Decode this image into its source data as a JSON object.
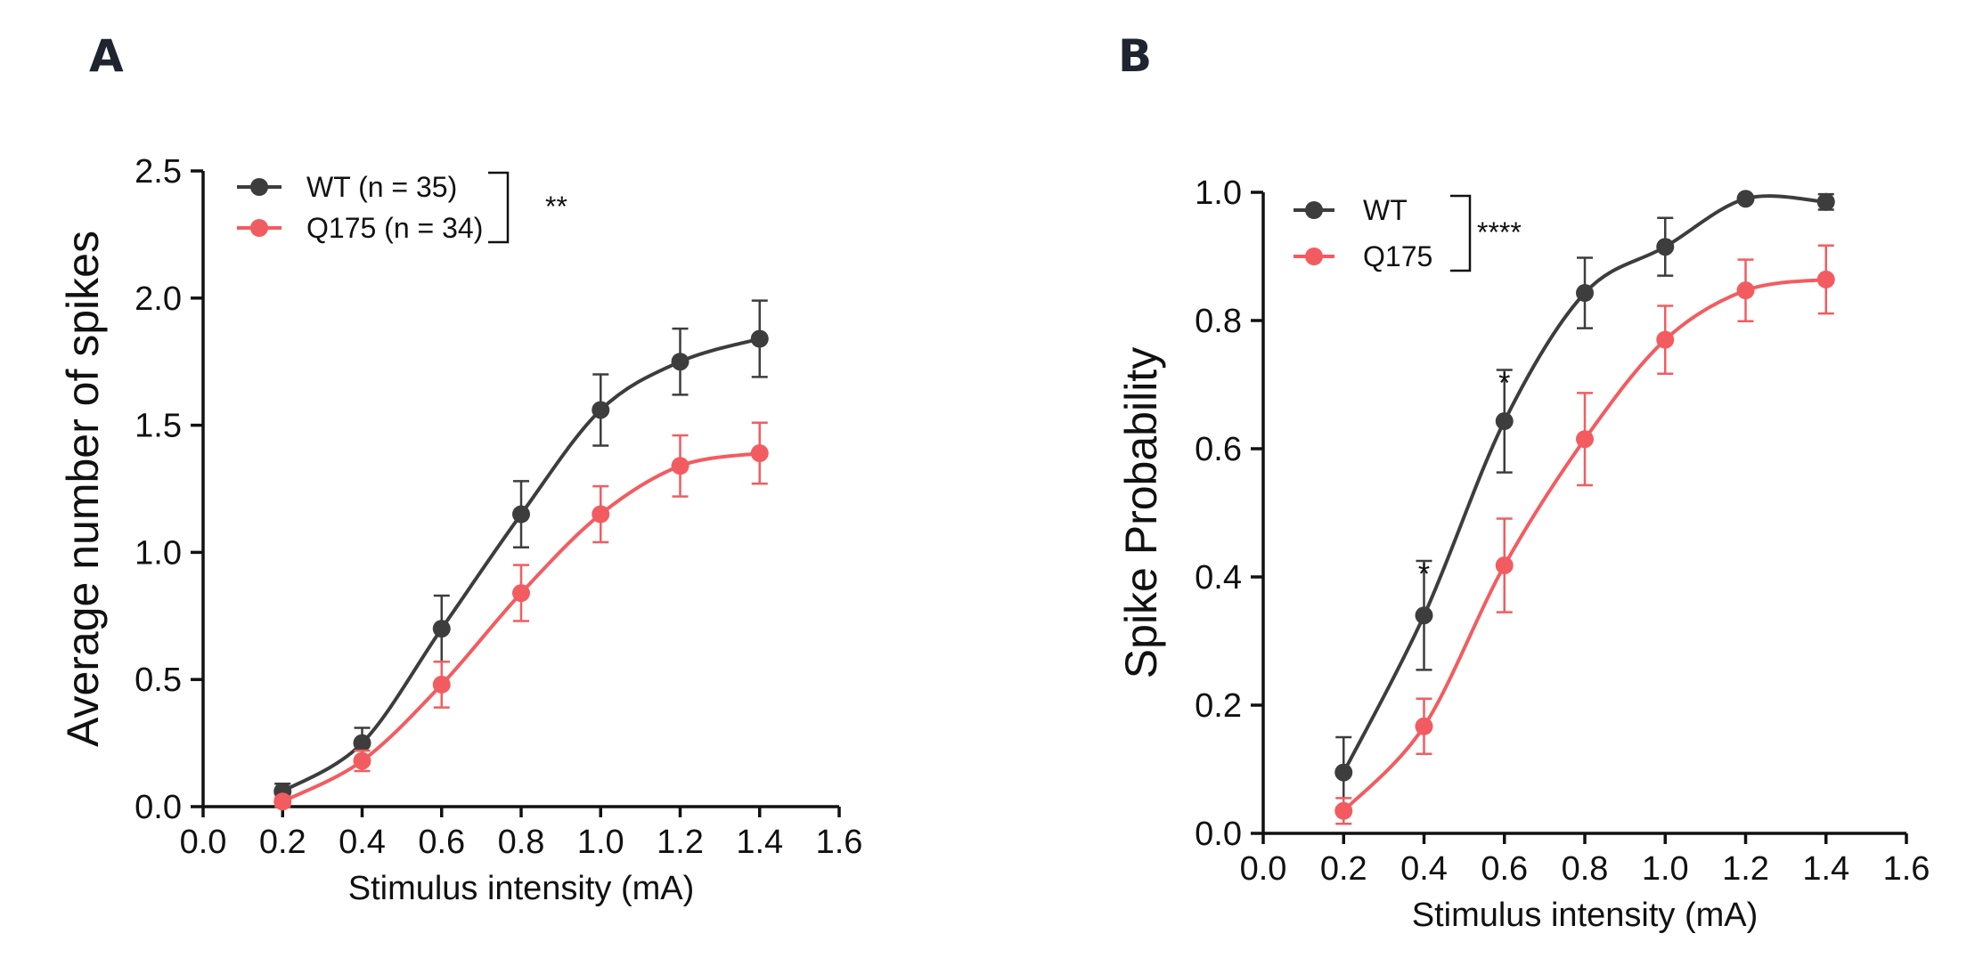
{
  "chart_data": [
    {
      "panel": "A",
      "type": "line",
      "xlabel": "Stimulus intensity (mA)",
      "ylabel": "Average number of spikes",
      "xlim": [
        0.0,
        1.6
      ],
      "ylim": [
        0.0,
        2.5
      ],
      "xticks": [
        "0.0",
        "0.2",
        "0.4",
        "0.6",
        "0.8",
        "1.0",
        "1.2",
        "1.4",
        "1.6"
      ],
      "yticks": [
        "0.0",
        "0.5",
        "1.0",
        "1.5",
        "2.0",
        "2.5"
      ],
      "x": [
        0.2,
        0.4,
        0.6,
        0.8,
        1.0,
        1.2,
        1.4
      ],
      "series": [
        {
          "name": "WT (n = 35)",
          "color": "#3d3d3d",
          "values": [
            0.06,
            0.25,
            0.7,
            1.15,
            1.56,
            1.75,
            1.84
          ],
          "errors": [
            0.03,
            0.06,
            0.13,
            0.13,
            0.14,
            0.13,
            0.15
          ]
        },
        {
          "name": "Q175 (n = 34)",
          "color": "#f25c60",
          "values": [
            0.02,
            0.18,
            0.48,
            0.84,
            1.15,
            1.34,
            1.39
          ],
          "errors": [
            0.02,
            0.04,
            0.09,
            0.11,
            0.11,
            0.12,
            0.12
          ]
        }
      ],
      "significance": "**",
      "legend_position": "top-left",
      "grid": false
    },
    {
      "panel": "B",
      "type": "line",
      "xlabel": "Stimulus intensity (mA)",
      "ylabel": "Spike Probability",
      "xlim": [
        0.0,
        1.6
      ],
      "ylim": [
        0.0,
        1.0
      ],
      "xticks": [
        "0.0",
        "0.2",
        "0.4",
        "0.6",
        "0.8",
        "1.0",
        "1.2",
        "1.4",
        "1.6"
      ],
      "yticks": [
        "0.0",
        "0.2",
        "0.4",
        "0.6",
        "0.8",
        "1.0"
      ],
      "x": [
        0.2,
        0.4,
        0.6,
        0.8,
        1.0,
        1.2,
        1.4
      ],
      "series": [
        {
          "name": "WT",
          "color": "#3d3d3d",
          "values": [
            0.095,
            0.34,
            0.643,
            0.843,
            0.915,
            0.99,
            0.985
          ],
          "errors": [
            0.055,
            0.085,
            0.08,
            0.055,
            0.045,
            0.0,
            0.012
          ]
        },
        {
          "name": "Q175",
          "color": "#f25c60",
          "values": [
            0.035,
            0.167,
            0.418,
            0.615,
            0.77,
            0.847,
            0.864
          ],
          "errors": [
            0.02,
            0.043,
            0.073,
            0.072,
            0.053,
            0.048,
            0.053
          ]
        }
      ],
      "significance": "****",
      "point_annotations": [
        {
          "x": 0.4,
          "text": "*"
        },
        {
          "x": 0.6,
          "text": "*"
        }
      ],
      "legend_position": "top-left",
      "grid": false
    }
  ]
}
